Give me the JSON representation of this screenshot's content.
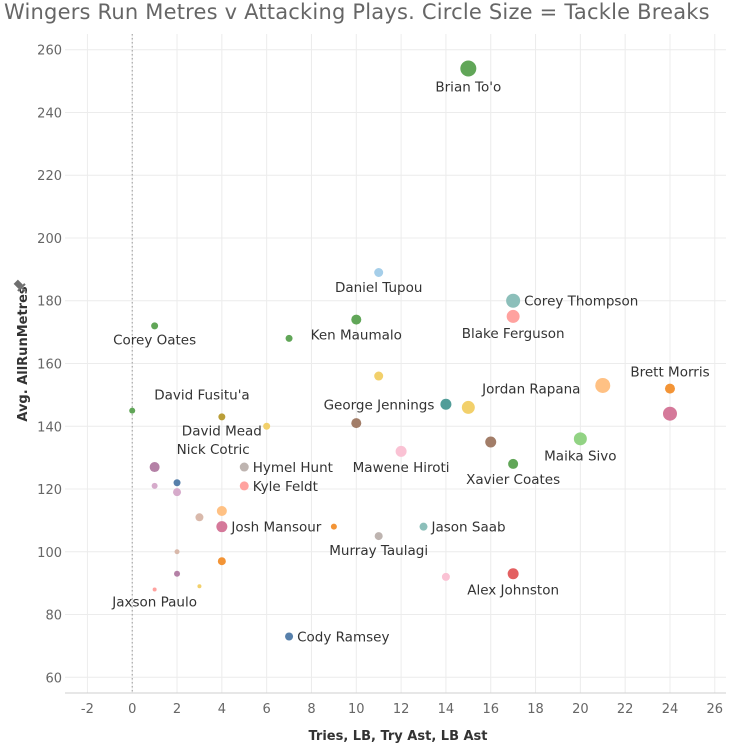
{
  "chart_data": {
    "type": "scatter",
    "title": "Wingers Run Metres v Attacking Plays. Circle Size = Tackle Breaks",
    "xlabel": "Tries, LB, Try Ast, LB Ast",
    "ylabel": "Avg. AllRunMetres",
    "xlim": [
      -3,
      26.5
    ],
    "ylim": [
      55,
      265
    ],
    "xticks": [
      -2,
      0,
      2,
      4,
      6,
      8,
      10,
      12,
      14,
      16,
      18,
      20,
      22,
      24,
      26
    ],
    "yticks": [
      60,
      80,
      100,
      120,
      140,
      160,
      180,
      200,
      220,
      240,
      260
    ],
    "grid": true,
    "size_encoding": "Tackle Breaks",
    "points": [
      {
        "x": 15,
        "y": 254,
        "size": 16,
        "color": "#59a14f",
        "label": "Brian To'o",
        "label_pos": "below"
      },
      {
        "x": 11,
        "y": 189,
        "size": 9,
        "color": "#a0cbe8",
        "label": "Daniel Tupou",
        "label_pos": "below"
      },
      {
        "x": 17,
        "y": 180,
        "size": 14,
        "color": "#86bcb6",
        "label": "Corey Thompson",
        "label_pos": "right"
      },
      {
        "x": 17,
        "y": 175,
        "size": 13,
        "color": "#ff9d9a",
        "label": "Blake Ferguson",
        "label_pos": "below"
      },
      {
        "x": 10,
        "y": 174,
        "size": 10,
        "color": "#59a14f",
        "label": "Ken Maumalo",
        "label_pos": "below"
      },
      {
        "x": 1,
        "y": 172,
        "size": 7,
        "color": "#59a14f",
        "label": "Corey Oates",
        "label_pos": "below"
      },
      {
        "x": 7,
        "y": 168,
        "size": 7,
        "color": "#59a14f",
        "label": "",
        "label_pos": "none"
      },
      {
        "x": 11,
        "y": 156,
        "size": 9,
        "color": "#f1ce63",
        "label": "",
        "label_pos": "none"
      },
      {
        "x": 21,
        "y": 153,
        "size": 15,
        "color": "#ffbe7d",
        "label": "",
        "label_pos": "none"
      },
      {
        "x": 24,
        "y": 152,
        "size": 10,
        "color": "#f28e2b",
        "label": "Brett Morris",
        "label_pos": "above"
      },
      {
        "x": 14,
        "y": 147,
        "size": 11,
        "color": "#499894",
        "label": "George Jennings",
        "label_pos": "left"
      },
      {
        "x": 15,
        "y": 146,
        "size": 13,
        "color": "#f1ce63",
        "label": "Jordan Rapana",
        "label_pos": "far-right"
      },
      {
        "x": 0,
        "y": 145,
        "size": 6,
        "color": "#59a14f",
        "label": "David Fusitu'a",
        "label_pos": "above-right"
      },
      {
        "x": 24,
        "y": 144,
        "size": 14,
        "color": "#d37295",
        "label": "",
        "label_pos": "none"
      },
      {
        "x": 4,
        "y": 143,
        "size": 7,
        "color": "#b6992d",
        "label": "David Mead",
        "label_pos": "below"
      },
      {
        "x": 10,
        "y": 141,
        "size": 10,
        "color": "#9d7660",
        "label": "",
        "label_pos": "none"
      },
      {
        "x": 6,
        "y": 140,
        "size": 7,
        "color": "#f1ce63",
        "label": "",
        "label_pos": "none"
      },
      {
        "x": 20,
        "y": 136,
        "size": 13,
        "color": "#8cd17d",
        "label": "Maika Sivo",
        "label_pos": "below"
      },
      {
        "x": 16,
        "y": 135,
        "size": 11,
        "color": "#9d7660",
        "label": "",
        "label_pos": "none"
      },
      {
        "x": 12,
        "y": 132,
        "size": 11,
        "color": "#fabfd2",
        "label": "Mawene Hiroti",
        "label_pos": "below"
      },
      {
        "x": 17,
        "y": 128,
        "size": 10,
        "color": "#59a14f",
        "label": "Xavier Coates",
        "label_pos": "below"
      },
      {
        "x": 1,
        "y": 127,
        "size": 10,
        "color": "#b07aa1",
        "label": "Nick Cotric",
        "label_pos": "above-right"
      },
      {
        "x": 5,
        "y": 127,
        "size": 9,
        "color": "#bab0ac",
        "label": "Hymel Hunt",
        "label_pos": "right"
      },
      {
        "x": 2,
        "y": 122,
        "size": 7,
        "color": "#4e79a7",
        "label": "",
        "label_pos": "none"
      },
      {
        "x": 1,
        "y": 121,
        "size": 6,
        "color": "#d4a6c8",
        "label": "",
        "label_pos": "none"
      },
      {
        "x": 5,
        "y": 121,
        "size": 9,
        "color": "#ff9d9a",
        "label": "Kyle Feldt",
        "label_pos": "right"
      },
      {
        "x": 2,
        "y": 119,
        "size": 8,
        "color": "#d4a6c8",
        "label": "",
        "label_pos": "none"
      },
      {
        "x": 4,
        "y": 113,
        "size": 10,
        "color": "#ffbe7d",
        "label": "",
        "label_pos": "none"
      },
      {
        "x": 3,
        "y": 111,
        "size": 8,
        "color": "#d7b5a6",
        "label": "",
        "label_pos": "none"
      },
      {
        "x": 4,
        "y": 108,
        "size": 11,
        "color": "#d37295",
        "label": "Josh Mansour",
        "label_pos": "right"
      },
      {
        "x": 9,
        "y": 108,
        "size": 6,
        "color": "#f28e2b",
        "label": "",
        "label_pos": "none"
      },
      {
        "x": 13,
        "y": 108,
        "size": 8,
        "color": "#86bcb6",
        "label": "Jason Saab",
        "label_pos": "right"
      },
      {
        "x": 11,
        "y": 105,
        "size": 8,
        "color": "#bab0ac",
        "label": "Murray Taulagi",
        "label_pos": "below"
      },
      {
        "x": 2,
        "y": 100,
        "size": 5,
        "color": "#d7b5a6",
        "label": "",
        "label_pos": "none"
      },
      {
        "x": 4,
        "y": 97,
        "size": 8,
        "color": "#f28e2b",
        "label": "",
        "label_pos": "none"
      },
      {
        "x": 2,
        "y": 93,
        "size": 6,
        "color": "#b07aa1",
        "label": "",
        "label_pos": "none"
      },
      {
        "x": 17,
        "y": 93,
        "size": 11,
        "color": "#e15759",
        "label": "Alex Johnston",
        "label_pos": "below"
      },
      {
        "x": 14,
        "y": 92,
        "size": 8,
        "color": "#fabfd2",
        "label": "",
        "label_pos": "none"
      },
      {
        "x": 3,
        "y": 89,
        "size": 4,
        "color": "#f1ce63",
        "label": "",
        "label_pos": "none"
      },
      {
        "x": 1,
        "y": 88,
        "size": 4,
        "color": "#ff9d9a",
        "label": "Jaxson Paulo",
        "label_pos": "below"
      },
      {
        "x": 7,
        "y": 73,
        "size": 8,
        "color": "#4e79a7",
        "label": "Cody Ramsey",
        "label_pos": "right"
      }
    ]
  }
}
